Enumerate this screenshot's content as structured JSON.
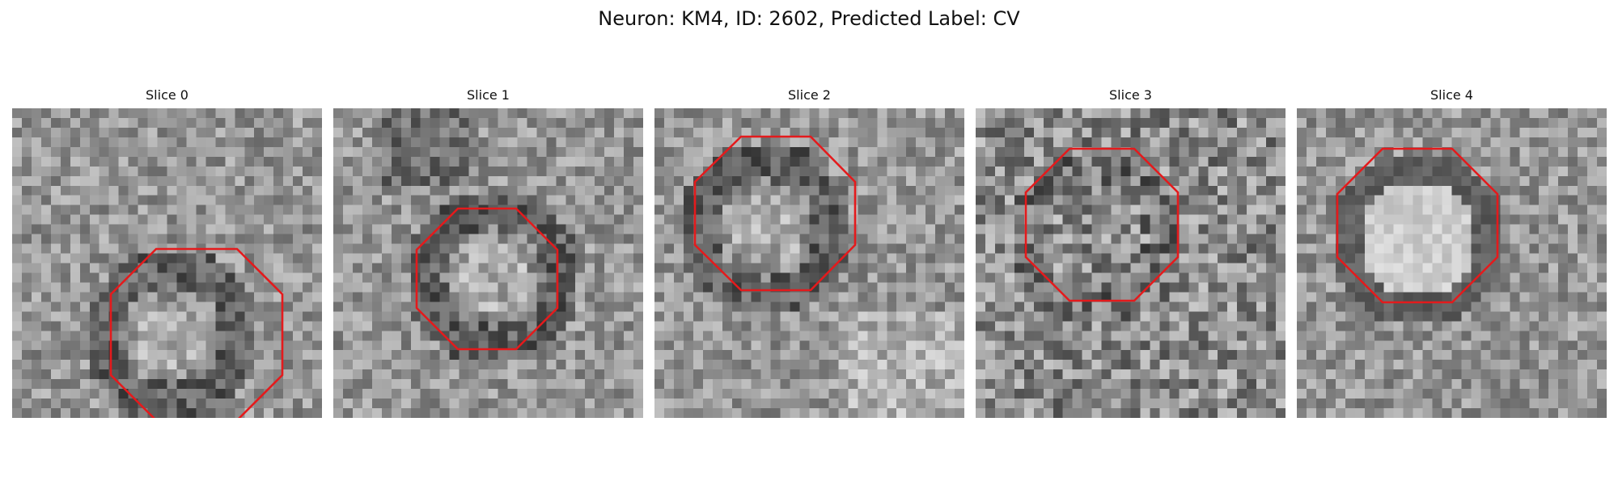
{
  "figure": {
    "title": "Neuron: KM4, ID: 2602, Predicted Label: CV"
  },
  "overlay_color": "#e41a1c",
  "slices": [
    {
      "label": "Slice 0"
    },
    {
      "label": "Slice 1"
    },
    {
      "label": "Slice 2"
    },
    {
      "label": "Slice 3"
    },
    {
      "label": "Slice 4"
    }
  ]
}
